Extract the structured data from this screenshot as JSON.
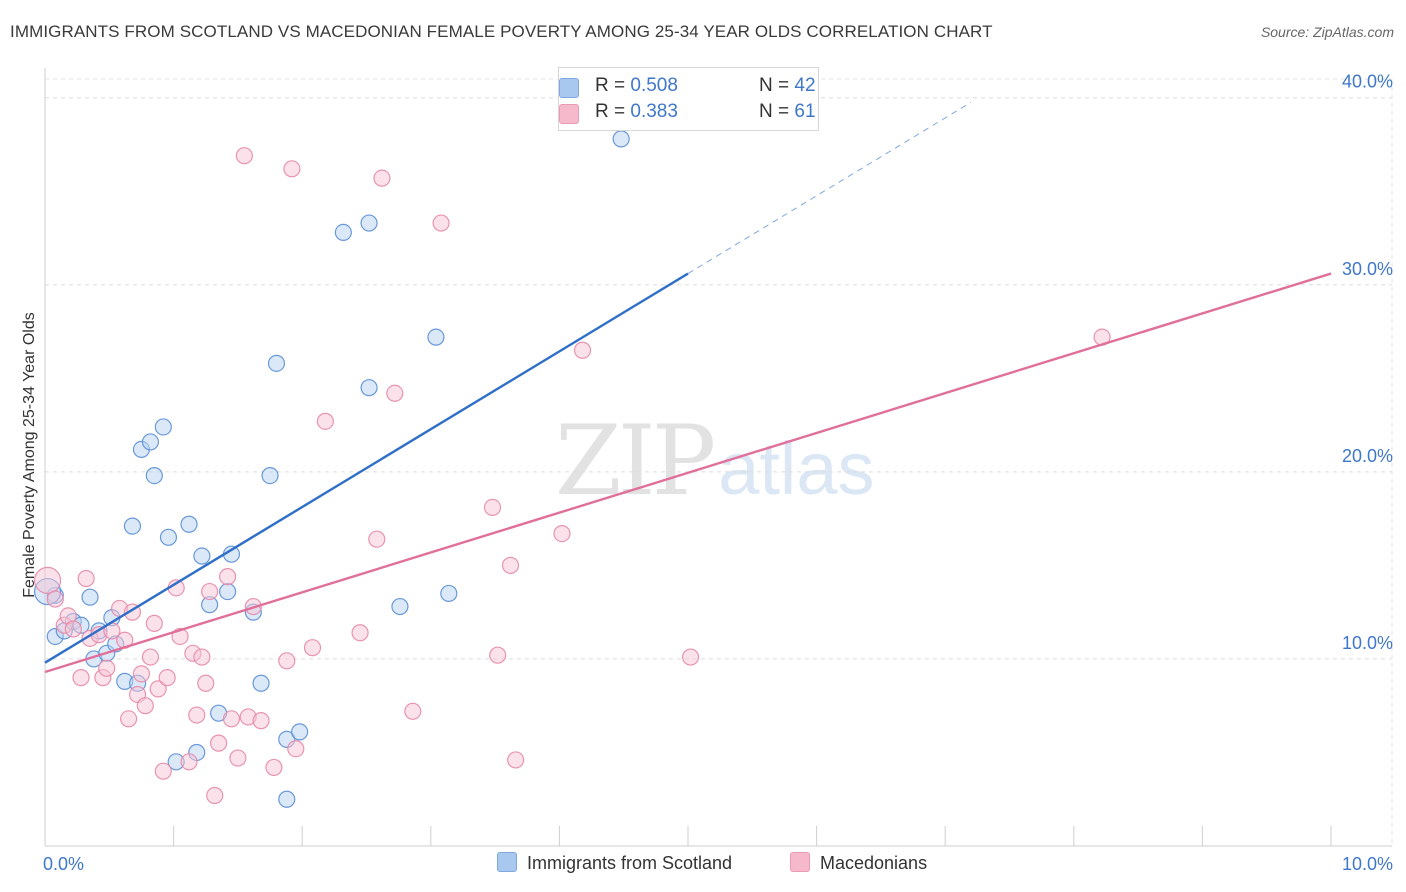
{
  "title": "IMMIGRANTS FROM SCOTLAND VS MACEDONIAN FEMALE POVERTY AMONG 25-34 YEAR OLDS CORRELATION CHART",
  "source": "Source: ZipAtlas.com",
  "watermark": {
    "zip": "ZIP",
    "atlas": "atlas"
  },
  "legend_top": [
    {
      "r_label": "R =",
      "r_value": "0.508",
      "n_label": "N =",
      "n_value": "42",
      "color": "#a9c8ef"
    },
    {
      "r_label": "R =",
      "r_value": "0.383",
      "n_label": "N =",
      "n_value": "61",
      "color": "#f6b9cc"
    }
  ],
  "legend_bottom": [
    {
      "label": "Immigrants from Scotland",
      "color": "#a9c8ef"
    },
    {
      "label": "Macedonians",
      "color": "#f6b9cc"
    }
  ],
  "chart_data": {
    "type": "scatter",
    "ylabel": "Female Poverty Among 25-34 Year Olds",
    "xlim": [
      0,
      10
    ],
    "ylim": [
      0,
      40
    ],
    "x_tick_labels": [
      {
        "value": 0,
        "label": "0.0%"
      },
      {
        "value": 10,
        "label": "10.0%"
      }
    ],
    "y_tick_labels": [
      {
        "value": 10,
        "label": "10.0%"
      },
      {
        "value": 20,
        "label": "20.0%"
      },
      {
        "value": 30,
        "label": "30.0%"
      },
      {
        "value": 40,
        "label": "40.0%"
      }
    ],
    "x_minor_ticks": [
      0,
      1,
      2,
      3,
      4,
      5,
      6,
      7,
      8,
      9,
      10
    ],
    "grid": true,
    "series": [
      {
        "name": "Immigrants from Scotland",
        "color": "#5b8fd6",
        "fill": "#b8d1f2",
        "trend": {
          "x0": 0,
          "y0": 9.8,
          "x1": 5.0,
          "y1": 30.6,
          "dash_to_x": 7.2,
          "color": "#2f6fc8"
        },
        "points": [
          [
            0.08,
            11.2
          ],
          [
            0.08,
            13.4
          ],
          [
            0.15,
            11.5
          ],
          [
            0.22,
            12.0
          ],
          [
            0.28,
            11.8
          ],
          [
            0.35,
            13.3
          ],
          [
            0.38,
            10.0
          ],
          [
            0.42,
            11.5
          ],
          [
            0.48,
            10.3
          ],
          [
            0.52,
            12.2
          ],
          [
            0.55,
            10.8
          ],
          [
            0.62,
            8.8
          ],
          [
            0.68,
            17.1
          ],
          [
            0.72,
            8.7
          ],
          [
            0.75,
            21.2
          ],
          [
            0.82,
            21.6
          ],
          [
            0.85,
            19.8
          ],
          [
            0.92,
            22.4
          ],
          [
            0.96,
            16.5
          ],
          [
            1.02,
            4.5
          ],
          [
            1.12,
            17.2
          ],
          [
            1.18,
            5.0
          ],
          [
            1.22,
            15.5
          ],
          [
            1.28,
            12.9
          ],
          [
            1.35,
            7.1
          ],
          [
            1.42,
            13.6
          ],
          [
            1.45,
            15.6
          ],
          [
            1.62,
            12.5
          ],
          [
            1.68,
            8.7
          ],
          [
            1.75,
            19.8
          ],
          [
            1.8,
            25.8
          ],
          [
            1.88,
            5.7
          ],
          [
            1.88,
            2.5
          ],
          [
            1.98,
            6.1
          ],
          [
            2.32,
            32.8
          ],
          [
            2.52,
            33.3
          ],
          [
            2.52,
            24.5
          ],
          [
            2.76,
            12.8
          ],
          [
            3.04,
            27.2
          ],
          [
            3.14,
            13.5
          ],
          [
            4.48,
            37.8
          ],
          [
            0.02,
            13.6
          ]
        ]
      },
      {
        "name": "Macedonians",
        "color": "#e58aa8",
        "fill": "#f8c6d5",
        "trend": {
          "x0": 0,
          "y0": 9.3,
          "x1": 10.0,
          "y1": 30.6,
          "color": "#e0709a"
        },
        "points": [
          [
            0.02,
            14.2
          ],
          [
            0.08,
            13.2
          ],
          [
            0.15,
            11.8
          ],
          [
            0.18,
            12.3
          ],
          [
            0.22,
            11.6
          ],
          [
            0.28,
            9.0
          ],
          [
            0.32,
            14.3
          ],
          [
            0.35,
            11.1
          ],
          [
            0.42,
            11.3
          ],
          [
            0.45,
            9.0
          ],
          [
            0.48,
            9.5
          ],
          [
            0.52,
            11.5
          ],
          [
            0.58,
            12.7
          ],
          [
            0.62,
            11.0
          ],
          [
            0.65,
            6.8
          ],
          [
            0.68,
            12.5
          ],
          [
            0.72,
            8.1
          ],
          [
            0.75,
            9.2
          ],
          [
            0.78,
            7.5
          ],
          [
            0.82,
            10.1
          ],
          [
            0.85,
            11.9
          ],
          [
            0.88,
            8.4
          ],
          [
            0.92,
            4.0
          ],
          [
            0.95,
            9.0
          ],
          [
            1.02,
            13.8
          ],
          [
            1.05,
            11.2
          ],
          [
            1.12,
            4.5
          ],
          [
            1.15,
            10.3
          ],
          [
            1.18,
            7.0
          ],
          [
            1.22,
            10.1
          ],
          [
            1.25,
            8.7
          ],
          [
            1.28,
            13.6
          ],
          [
            1.32,
            2.7
          ],
          [
            1.35,
            5.5
          ],
          [
            1.42,
            14.4
          ],
          [
            1.45,
            6.8
          ],
          [
            1.5,
            4.7
          ],
          [
            1.55,
            36.9
          ],
          [
            1.58,
            6.9
          ],
          [
            1.62,
            12.8
          ],
          [
            1.68,
            6.7
          ],
          [
            1.78,
            4.2
          ],
          [
            1.88,
            9.9
          ],
          [
            1.92,
            36.2
          ],
          [
            1.95,
            5.2
          ],
          [
            2.08,
            10.6
          ],
          [
            2.18,
            22.7
          ],
          [
            2.45,
            11.4
          ],
          [
            2.58,
            16.4
          ],
          [
            2.62,
            35.7
          ],
          [
            2.72,
            24.2
          ],
          [
            2.86,
            7.2
          ],
          [
            3.08,
            33.3
          ],
          [
            3.48,
            18.1
          ],
          [
            3.52,
            10.2
          ],
          [
            3.62,
            15.0
          ],
          [
            3.66,
            4.6
          ],
          [
            4.02,
            16.7
          ],
          [
            4.18,
            26.5
          ],
          [
            5.02,
            10.1
          ],
          [
            8.22,
            27.2
          ]
        ]
      }
    ]
  }
}
